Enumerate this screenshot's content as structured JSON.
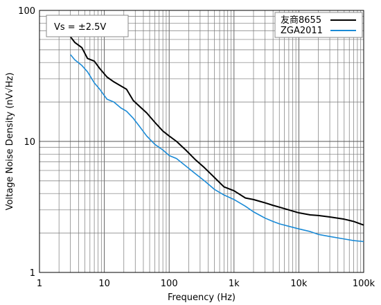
{
  "chart_data": {
    "type": "line",
    "x_scale": "log",
    "y_scale": "log",
    "xlim": [
      1,
      100000
    ],
    "ylim": [
      1,
      100
    ],
    "grid": true,
    "legend_position": "top-right",
    "xlabel": "Frequency (Hz)",
    "ylabel": "Voltage Noise Density (nV√Hz)",
    "x_tick_values": [
      1,
      10,
      100,
      1000,
      10000,
      100000
    ],
    "x_tick_labels": [
      "1",
      "10",
      "100",
      "1k",
      "10k",
      "100k"
    ],
    "y_tick_values": [
      1,
      10,
      100
    ],
    "y_tick_labels": [
      "1",
      "10",
      "100"
    ],
    "annotation": "Vs = ±2.5V",
    "series": [
      {
        "name": "友商8655",
        "color": "#000000",
        "x": [
          3,
          3.5,
          4.5,
          5.5,
          7,
          8.5,
          11,
          14,
          18,
          22,
          28,
          35,
          45,
          60,
          80,
          100,
          130,
          180,
          250,
          350,
          500,
          700,
          1000,
          1500,
          2000,
          3000,
          4000,
          5000,
          7000,
          10000,
          15000,
          20000,
          30000,
          50000,
          70000,
          100000
        ],
        "y": [
          63,
          57,
          52,
          43,
          41,
          36,
          31,
          28.5,
          26.5,
          25,
          20.5,
          18.5,
          16.5,
          14,
          12,
          11,
          10,
          8.6,
          7.3,
          6.3,
          5.3,
          4.5,
          4.2,
          3.7,
          3.6,
          3.4,
          3.25,
          3.15,
          3,
          2.85,
          2.75,
          2.72,
          2.65,
          2.55,
          2.45,
          2.3
        ]
      },
      {
        "name": "ZGA2011",
        "color": "#1a8ad6",
        "x": [
          3,
          3.5,
          4.5,
          5.5,
          7,
          8.5,
          11,
          14,
          18,
          22,
          28,
          35,
          45,
          60,
          80,
          100,
          130,
          180,
          250,
          350,
          500,
          700,
          1000,
          1500,
          2000,
          3000,
          4000,
          5000,
          7000,
          10000,
          15000,
          20000,
          30000,
          50000,
          70000,
          100000
        ],
        "y": [
          46,
          42,
          38,
          34,
          28,
          25,
          21,
          20,
          18,
          17,
          15,
          13,
          11,
          9.5,
          8.6,
          7.8,
          7.4,
          6.5,
          5.7,
          5,
          4.3,
          3.9,
          3.6,
          3.2,
          2.9,
          2.6,
          2.45,
          2.35,
          2.25,
          2.15,
          2.05,
          1.95,
          1.88,
          1.8,
          1.75,
          1.72
        ]
      }
    ]
  }
}
